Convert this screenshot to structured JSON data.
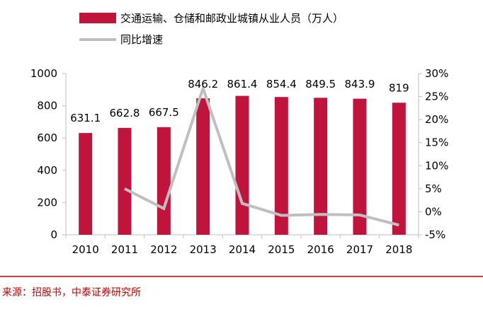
{
  "chart_data": {
    "type": "bar",
    "categories": [
      "2010",
      "2011",
      "2012",
      "2013",
      "2014",
      "2015",
      "2016",
      "2017",
      "2018"
    ],
    "series": [
      {
        "name": "交通运输、仓储和邮政业城镇从业人员（万人）",
        "type": "bar",
        "axis": "left",
        "values": [
          631.1,
          662.8,
          667.5,
          846.2,
          861.4,
          854.4,
          849.5,
          843.9,
          819
        ],
        "data_labels": [
          "631.1",
          "662.8",
          "667.5",
          "846.2",
          "861.4",
          "854.4",
          "849.5",
          "843.9",
          "819"
        ],
        "color": "#c0143c"
      },
      {
        "name": "同比增速",
        "type": "line",
        "axis": "right",
        "values": [
          null,
          5.0,
          0.7,
          26.8,
          1.8,
          -0.8,
          -0.6,
          -0.7,
          -2.9
        ],
        "color": "#bfbfbf"
      }
    ],
    "left_axis": {
      "ylim": [
        0,
        1000
      ],
      "ticks": [
        0,
        200,
        400,
        600,
        800,
        1000
      ],
      "tick_labels": [
        "0",
        "200",
        "400",
        "600",
        "800",
        "1000"
      ]
    },
    "right_axis": {
      "ylim": [
        -5,
        30
      ],
      "ticks": [
        -5,
        0,
        5,
        10,
        15,
        20,
        25,
        30
      ],
      "tick_labels": [
        "-5%",
        "0%",
        "5%",
        "10%",
        "15%",
        "20%",
        "25%",
        "30%"
      ]
    },
    "legend_position": "top-left",
    "grid": false
  },
  "source": "来源：招股书，中泰证券研究所",
  "colors": {
    "divider": "#c00000",
    "axis": "#bfbfbf"
  }
}
